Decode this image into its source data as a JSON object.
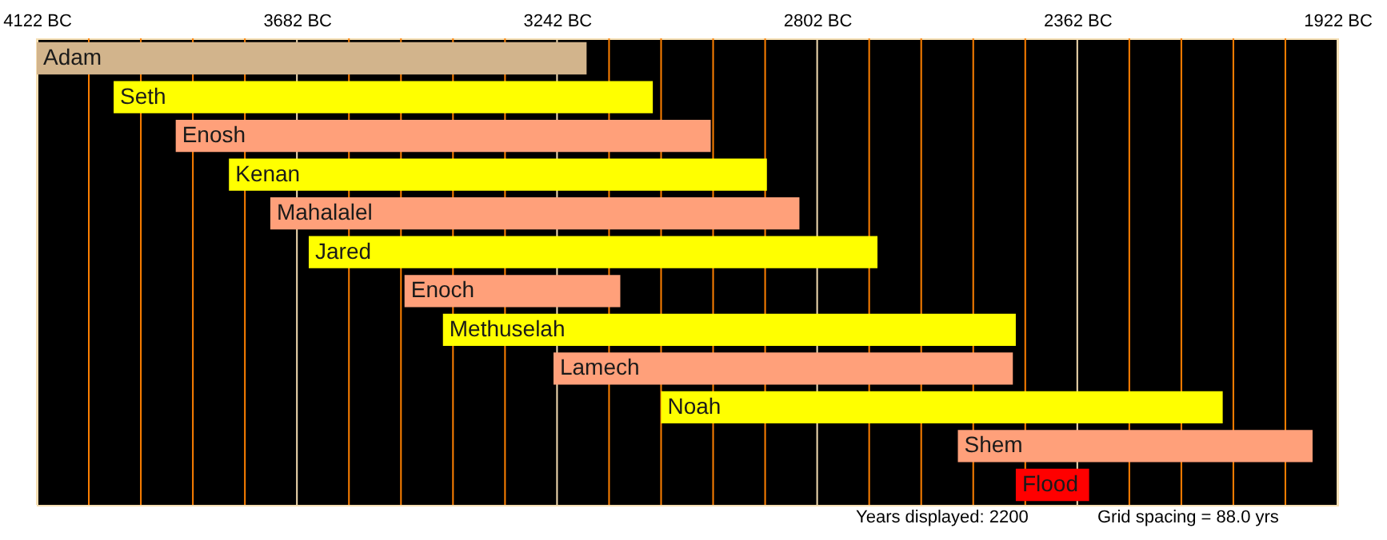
{
  "chart_data": {
    "type": "bar",
    "orientation": "horizontal",
    "categories": [
      "Adam",
      "Seth",
      "Enosh",
      "Kenan",
      "Mahalalel",
      "Jared",
      "Enoch",
      "Methuselah",
      "Lamech",
      "Noah",
      "Shem",
      "Flood"
    ],
    "base": [
      -4122,
      -3992,
      -3887,
      -3797,
      -3727,
      -3662,
      -3500,
      -3435,
      -3248,
      -3066,
      -2564,
      -2466
    ],
    "values": [
      930,
      912,
      905,
      910,
      895,
      962,
      365,
      969,
      777,
      950,
      600,
      124
    ],
    "colors": [
      "#d2b48c",
      "#ffff00",
      "#ffa07a",
      "#ffff00",
      "#ffa07a",
      "#ffff00",
      "#ffa07a",
      "#ffff00",
      "#ffa07a",
      "#ffff00",
      "#ffa07a",
      "#ff0000"
    ],
    "xlim": [
      -4122,
      -1922
    ],
    "xticks": [
      {
        "value": -4122,
        "label": "4122 BC"
      },
      {
        "value": -4034,
        "label": null
      },
      {
        "value": -3946,
        "label": null
      },
      {
        "value": -3858,
        "label": null
      },
      {
        "value": -3770,
        "label": null
      },
      {
        "value": -3682,
        "label": "3682 BC"
      },
      {
        "value": -3594,
        "label": null
      },
      {
        "value": -3506,
        "label": null
      },
      {
        "value": -3418,
        "label": null
      },
      {
        "value": -3330,
        "label": null
      },
      {
        "value": -3242,
        "label": "3242 BC"
      },
      {
        "value": -3154,
        "label": null
      },
      {
        "value": -3066,
        "label": null
      },
      {
        "value": -2978,
        "label": null
      },
      {
        "value": -2890,
        "label": null
      },
      {
        "value": -2802,
        "label": "2802 BC"
      },
      {
        "value": -2714,
        "label": null
      },
      {
        "value": -2626,
        "label": null
      },
      {
        "value": -2538,
        "label": null
      },
      {
        "value": -2450,
        "label": null
      },
      {
        "value": -2362,
        "label": "2362 BC"
      },
      {
        "value": -2274,
        "label": null
      },
      {
        "value": -2186,
        "label": null
      },
      {
        "value": -2098,
        "label": null
      },
      {
        "value": -2010,
        "label": null
      },
      {
        "value": -1922,
        "label": "1922 BC"
      }
    ],
    "grid": true,
    "annotations": [
      "Years displayed: 2200",
      "Grid spacing = 88.0 yrs"
    ]
  }
}
